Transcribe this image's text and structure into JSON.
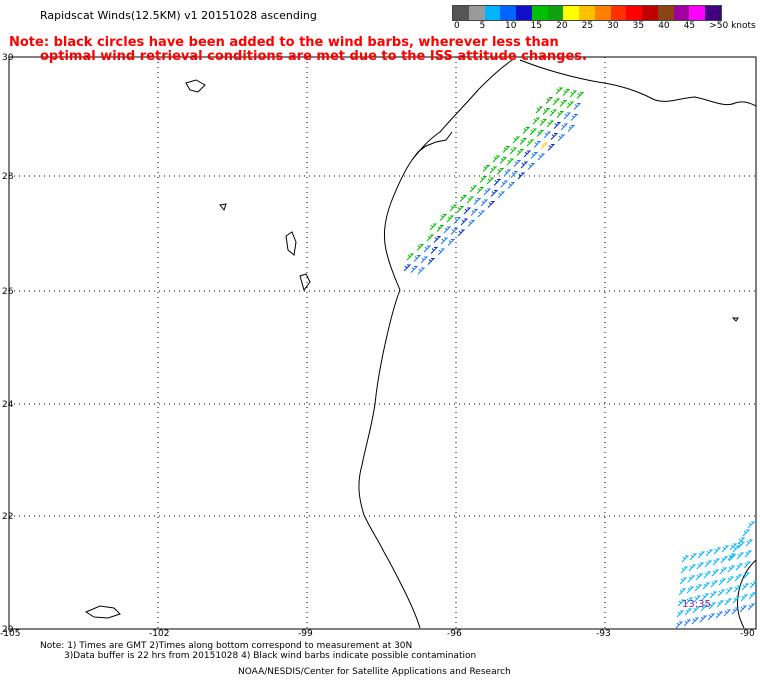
{
  "title": "Rapidscat Winds(12.5KM) v1 20151028 ascending",
  "note_line1": "Note: black circles have been added to the wind barbs, wherever less than",
  "note_line2": "optimal wind retrieval conditions are met due to the ISS attitude changes.",
  "legend": {
    "labels": [
      "0",
      "5",
      "10",
      "15",
      "20",
      "25",
      "30",
      "35",
      "40",
      "45",
      ">50 knots"
    ],
    "colors": [
      "#555555",
      "#9a9a9a",
      "#00b4ff",
      "#0064ff",
      "#1010c8",
      "#00c000",
      "#10a010",
      "#ffff00",
      "#ffc000",
      "#ff8000",
      "#ff3000",
      "#ff0000",
      "#c00000",
      "#8b4513",
      "#a000a0",
      "#ff00ff",
      "#400080"
    ]
  },
  "axes": {
    "lat_labels": [
      "30",
      "28",
      "26",
      "24",
      "22",
      "20"
    ],
    "lon_labels": [
      "-105",
      "-102",
      "-99",
      "-96",
      "-93",
      "-90"
    ]
  },
  "timestamp": "13:35",
  "footer": {
    "line1": "Note: 1) Times are GMT 2)Times along bottom correspond to measurement at 30N",
    "line2": "3)Data buffer is 22 hrs from 20151028 4) Black wind barbs indicate possible contamination",
    "line3": "NOAA/NESDIS/Center for Satellite Applications and Research"
  }
}
